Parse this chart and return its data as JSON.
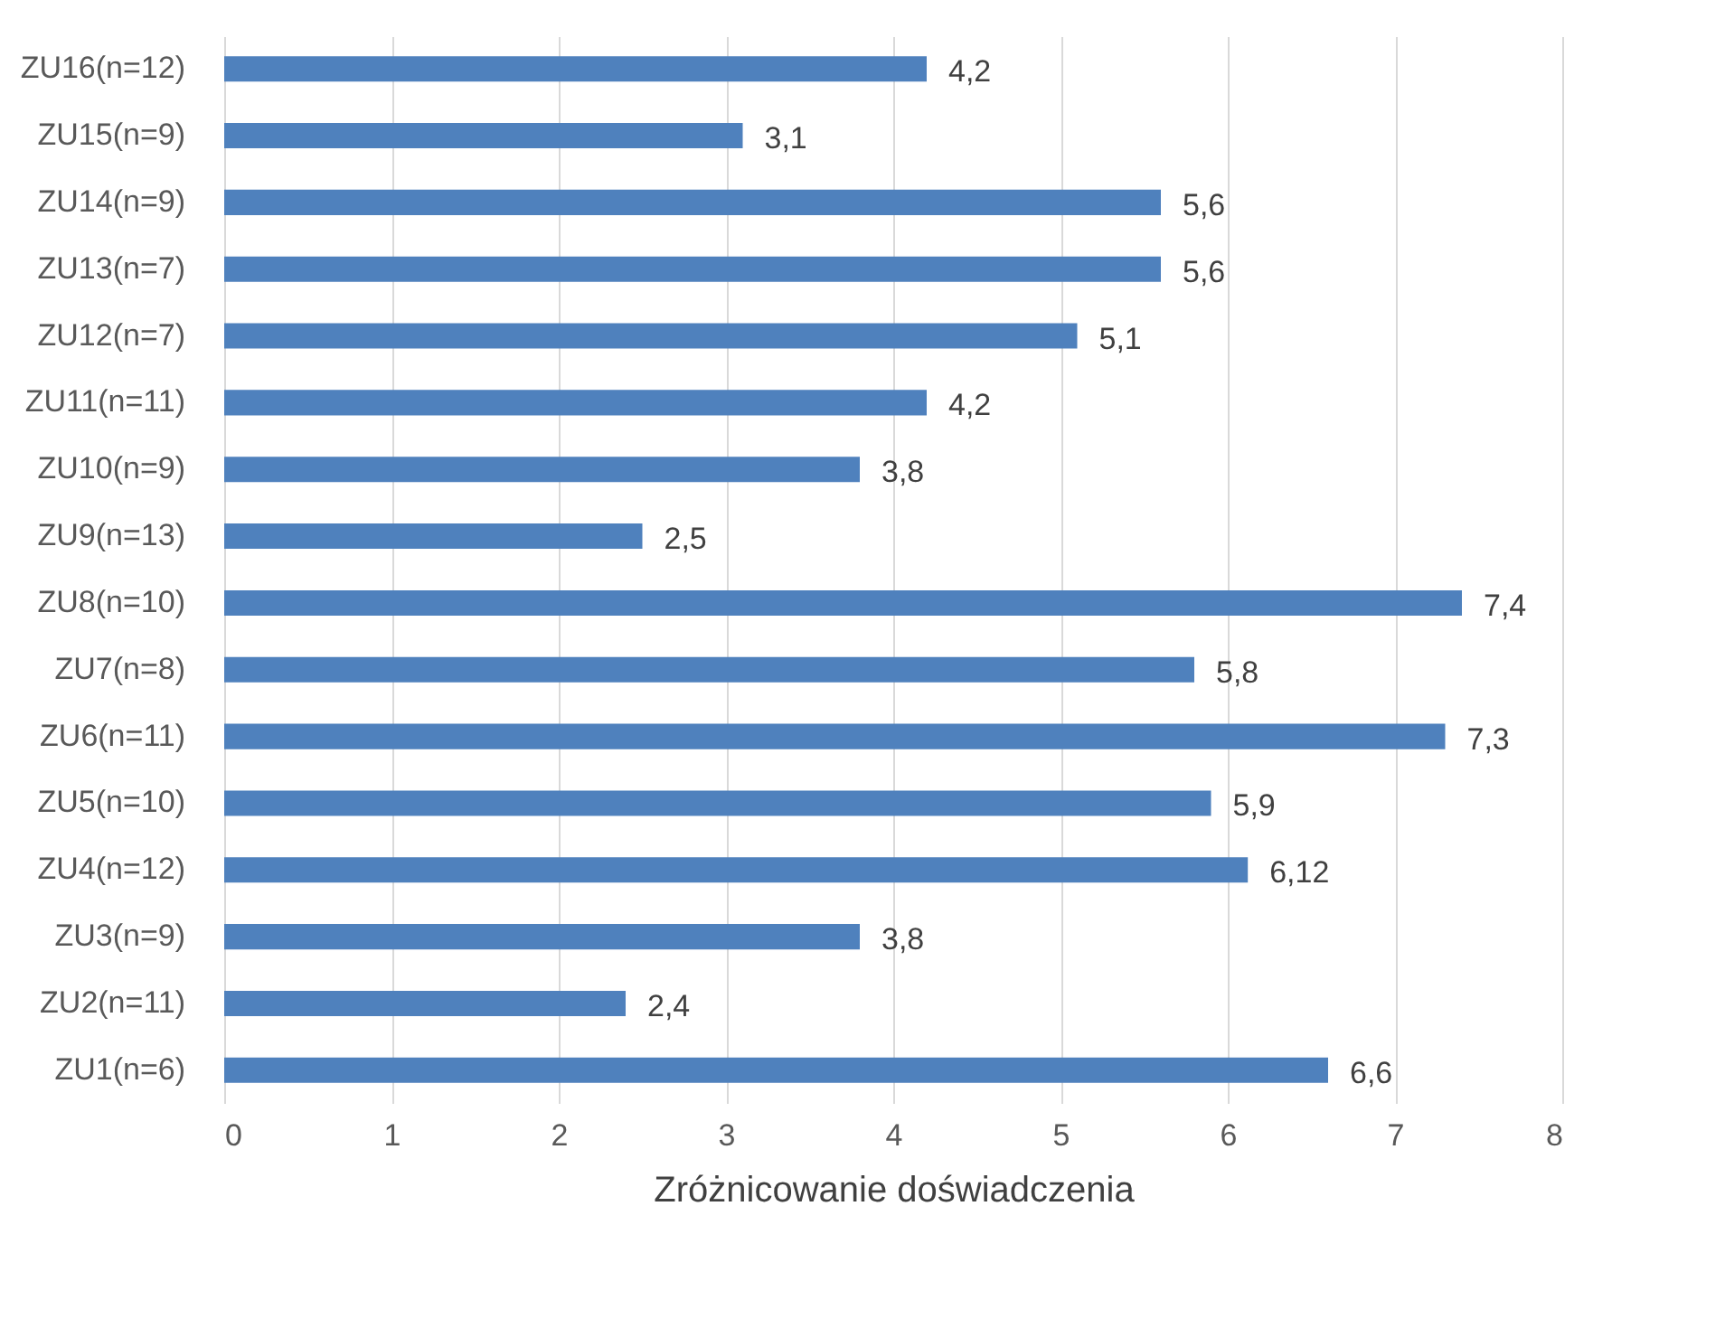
{
  "chart_data": {
    "type": "bar",
    "orientation": "horizontal",
    "xlabel": "Zróżnicowanie doświadczenia",
    "categories": [
      "ZU16(n=12)",
      "ZU15(n=9)",
      "ZU14(n=9)",
      "ZU13(n=7)",
      "ZU12(n=7)",
      "ZU11(n=11)",
      "ZU10(n=9)",
      "ZU9(n=13)",
      "ZU8(n=10)",
      "ZU7(n=8)",
      "ZU6(n=11)",
      "ZU5(n=10)",
      "ZU4(n=12)",
      "ZU3(n=9)",
      "ZU2(n=11)",
      "ZU1(n=6)"
    ],
    "values": [
      4.2,
      3.1,
      5.6,
      5.6,
      5.1,
      4.2,
      3.8,
      2.5,
      7.4,
      5.8,
      7.3,
      5.9,
      6.12,
      3.8,
      2.4,
      6.6
    ],
    "value_labels": [
      "4,2",
      "3,1",
      "5,6",
      "5,6",
      "5,1",
      "4,2",
      "3,8",
      "2,5",
      "7,4",
      "5,8",
      "7,3",
      "5,9",
      "6,12",
      "3,8",
      "2,4",
      "6,6"
    ],
    "color": "#4f81bd",
    "xlim": [
      0,
      8
    ],
    "xticks": [
      0,
      1,
      2,
      3,
      4,
      5,
      6,
      7,
      8
    ],
    "grid": "x"
  }
}
